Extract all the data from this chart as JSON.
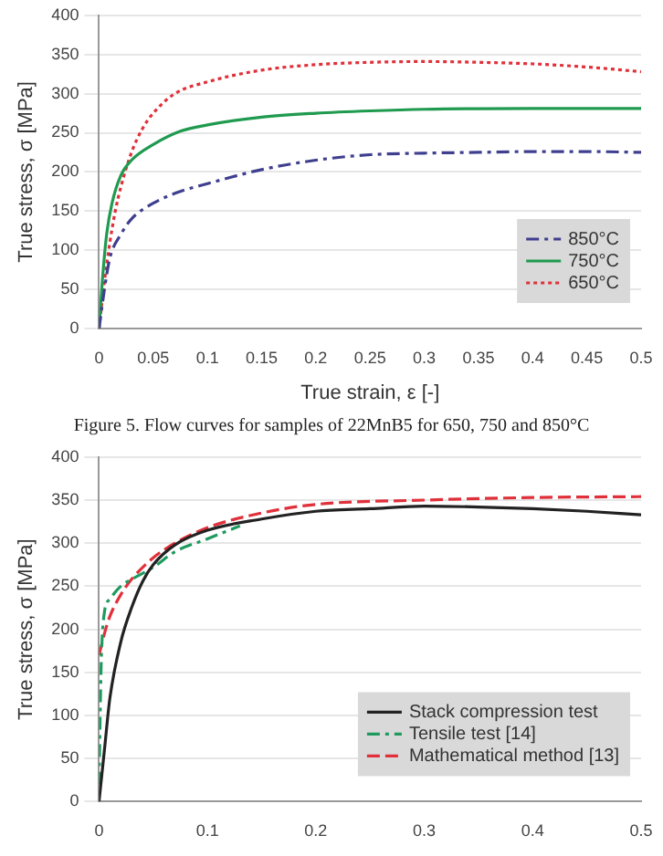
{
  "chart_data": [
    {
      "type": "line",
      "ylabel": "True stress, σ [MPa]",
      "xlabel": "True strain, ε [-]",
      "annotations": [
        "Figure 5.   Flow curves for samples of 22MnB5 for 650, 750 and 850°C"
      ],
      "xlim": [
        0,
        0.5
      ],
      "xticks": [
        0,
        0.05,
        0.1,
        0.15,
        0.2,
        0.25,
        0.3,
        0.35,
        0.4,
        0.45,
        0.5
      ],
      "ylim": [
        0,
        400
      ],
      "yticks": [
        0,
        50,
        100,
        150,
        200,
        250,
        300,
        350,
        400
      ],
      "grid": "y",
      "legend": "bottom right",
      "marker": "none",
      "series": [
        {
          "name": "850°C",
          "color": "#3f3f8f",
          "line_style": "dashdot",
          "x": [
            0,
            0.005,
            0.01,
            0.02,
            0.03,
            0.05,
            0.075,
            0.1,
            0.15,
            0.2,
            0.25,
            0.3,
            0.35,
            0.4,
            0.45,
            0.5
          ],
          "values": [
            0,
            50,
            90,
            120,
            140,
            160,
            175,
            185,
            203,
            215,
            222,
            224,
            225,
            226,
            226,
            225
          ]
        },
        {
          "name": "750°C",
          "color": "#1f9a4f",
          "line_style": "solid",
          "x": [
            0,
            0.003,
            0.007,
            0.012,
            0.02,
            0.03,
            0.05,
            0.075,
            0.1,
            0.15,
            0.2,
            0.25,
            0.3,
            0.4,
            0.5
          ],
          "values": [
            0,
            60,
            120,
            160,
            195,
            215,
            235,
            252,
            260,
            270,
            275,
            278,
            280,
            281,
            281
          ]
        },
        {
          "name": "650°C",
          "color": "#e0303a",
          "line_style": "dotted",
          "x": [
            0,
            0.005,
            0.01,
            0.015,
            0.02,
            0.03,
            0.04,
            0.05,
            0.07,
            0.1,
            0.15,
            0.2,
            0.25,
            0.3,
            0.35,
            0.4,
            0.45,
            0.5
          ],
          "values": [
            0,
            60,
            110,
            150,
            180,
            225,
            255,
            275,
            300,
            315,
            330,
            337,
            340,
            341,
            340,
            338,
            334,
            328
          ]
        }
      ]
    },
    {
      "type": "line",
      "ylabel": "True stress, σ [MPa]",
      "xlim": [
        0,
        0.5
      ],
      "xticks": [
        0,
        0.1,
        0.2,
        0.3,
        0.4,
        0.5
      ],
      "ylim": [
        0,
        400
      ],
      "yticks": [
        0,
        50,
        100,
        150,
        200,
        250,
        300,
        350,
        400
      ],
      "grid": "y",
      "legend": "bottom right",
      "marker": "none",
      "series": [
        {
          "name": "Stack compression test",
          "color": "#222222",
          "line_style": "solid",
          "x": [
            0,
            0.005,
            0.01,
            0.02,
            0.03,
            0.04,
            0.05,
            0.07,
            0.1,
            0.15,
            0.2,
            0.25,
            0.3,
            0.35,
            0.4,
            0.45,
            0.5
          ],
          "values": [
            0,
            60,
            120,
            185,
            225,
            255,
            275,
            298,
            315,
            328,
            337,
            340,
            343,
            342,
            340,
            337,
            333
          ]
        },
        {
          "name": "Tensile test [14]",
          "color": "#1f9a5f",
          "line_style": "dashdot",
          "x": [
            0,
            0.002,
            0.005,
            0.01,
            0.02,
            0.03,
            0.05,
            0.07,
            0.1,
            0.13
          ],
          "values": [
            20,
            160,
            220,
            235,
            250,
            258,
            272,
            290,
            305,
            320
          ]
        },
        {
          "name": "Mathematical method [13]",
          "color": "#e0303a",
          "line_style": "dashed",
          "x": [
            0,
            0.005,
            0.01,
            0.02,
            0.03,
            0.05,
            0.07,
            0.1,
            0.15,
            0.2,
            0.3,
            0.4,
            0.5
          ],
          "values": [
            170,
            195,
            215,
            240,
            258,
            283,
            300,
            318,
            335,
            345,
            350,
            353,
            354
          ]
        }
      ]
    }
  ]
}
